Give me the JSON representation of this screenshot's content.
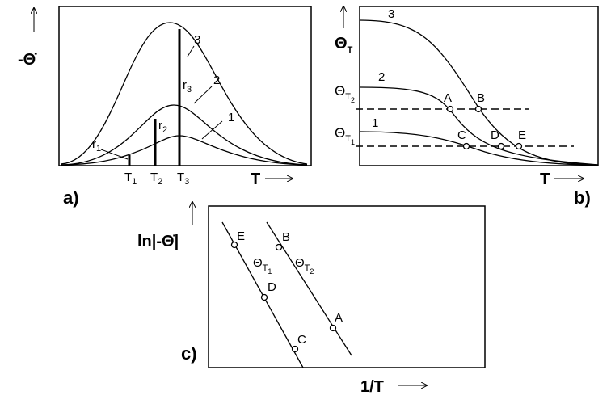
{
  "panel_a": {
    "label": "a)",
    "y_axis_label": "-Θ̇",
    "x_axis_label": "T",
    "curve_labels": [
      "1",
      "2",
      "3"
    ],
    "rate_labels": [
      {
        "main": "r",
        "sub": "1"
      },
      {
        "main": "r",
        "sub": "2"
      },
      {
        "main": "r",
        "sub": "3"
      }
    ],
    "temperature_labels": [
      {
        "main": "T",
        "sub": "1"
      },
      {
        "main": "T",
        "sub": "2"
      },
      {
        "main": "T",
        "sub": "3"
      }
    ]
  },
  "panel_b": {
    "label": "b)",
    "y_axis_label": {
      "main": "Θ",
      "sub": "T"
    },
    "levels": [
      {
        "main": "Θ",
        "sub": "T",
        "subsub": "1"
      },
      {
        "main": "Θ",
        "sub": "T",
        "subsub": "2"
      }
    ],
    "x_axis_label": "T",
    "curve_labels": [
      "1",
      "2",
      "3"
    ],
    "points": [
      "A",
      "B",
      "C",
      "D",
      "E"
    ]
  },
  "panel_c": {
    "label": "c)",
    "y_axis_label": "ln|-Θ̇|",
    "x_axis_label": "1/T",
    "lines": [
      {
        "main": "Θ",
        "sub": "T",
        "subsub": "1"
      },
      {
        "main": "Θ",
        "sub": "T",
        "subsub": "2"
      }
    ],
    "points": [
      "E",
      "D",
      "C",
      "B",
      "A"
    ]
  }
}
